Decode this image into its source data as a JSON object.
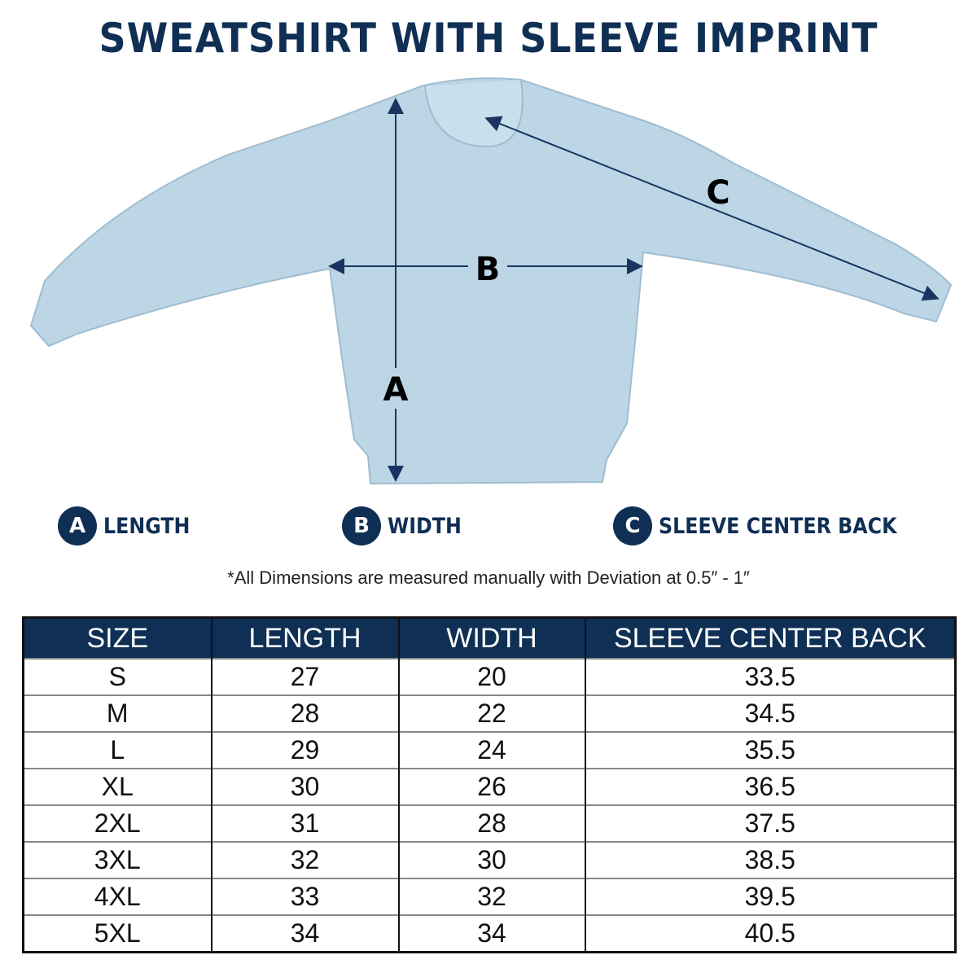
{
  "title": "SWEATSHIRT WITH SLEEVE IMPRINT",
  "diagram": {
    "labels": {
      "a": "A",
      "b": "B",
      "c": "C"
    },
    "shirt_color": "#bcd6e6",
    "accent": "#0f2f54"
  },
  "legend": [
    {
      "letter": "A",
      "label": "LENGTH"
    },
    {
      "letter": "B",
      "label": "WIDTH"
    },
    {
      "letter": "C",
      "label": "SLEEVE CENTER BACK"
    }
  ],
  "note": "*All Dimensions are measured manually with Deviation at 0.5″ - 1″",
  "table": {
    "headers": [
      "SIZE",
      "LENGTH",
      "WIDTH",
      "SLEEVE CENTER BACK"
    ],
    "rows": [
      [
        "S",
        "27",
        "20",
        "33.5"
      ],
      [
        "M",
        "28",
        "22",
        "34.5"
      ],
      [
        "L",
        "29",
        "24",
        "35.5"
      ],
      [
        "XL",
        "30",
        "26",
        "36.5"
      ],
      [
        "2XL",
        "31",
        "28",
        "37.5"
      ],
      [
        "3XL",
        "32",
        "30",
        "38.5"
      ],
      [
        "4XL",
        "33",
        "32",
        "39.5"
      ],
      [
        "5XL",
        "34",
        "34",
        "40.5"
      ]
    ]
  }
}
